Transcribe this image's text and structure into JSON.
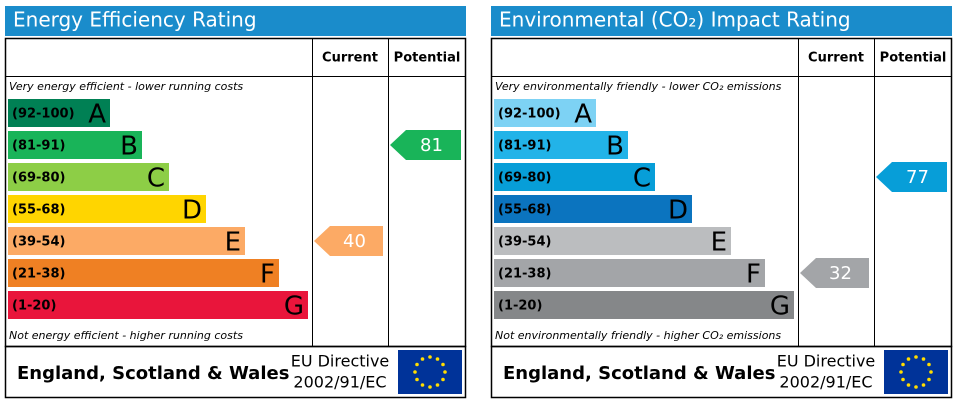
{
  "panels": [
    {
      "title": "Energy Efficiency Rating",
      "columns": [
        "Current",
        "Potential"
      ],
      "top_note": "Very energy efficient - lower running costs",
      "bottom_note": "Not energy efficient - higher running costs",
      "bands": [
        {
          "range": "(92-100)",
          "letter": "A",
          "color": "#008054"
        },
        {
          "range": "(81-91)",
          "letter": "B",
          "color": "#19b459"
        },
        {
          "range": "(69-80)",
          "letter": "C",
          "color": "#8dce46"
        },
        {
          "range": "(55-68)",
          "letter": "D",
          "color": "#ffd500"
        },
        {
          "range": "(39-54)",
          "letter": "E",
          "color": "#fcaa65"
        },
        {
          "range": "(21-38)",
          "letter": "F",
          "color": "#ef8023"
        },
        {
          "range": "(1-20)",
          "letter": "G",
          "color": "#e9153b"
        }
      ],
      "current": 40,
      "potential": 81,
      "footer": {
        "region": "England, Scotland & Wales",
        "directive": [
          "EU Directive",
          "2002/91/EC"
        ]
      }
    },
    {
      "title": "Environmental (CO₂) Impact Rating",
      "columns": [
        "Current",
        "Potential"
      ],
      "top_note": "Very environmentally friendly - lower CO₂ emissions",
      "bottom_note": "Not environmentally friendly - higher CO₂ emissions",
      "bands": [
        {
          "range": "(92-100)",
          "letter": "A",
          "color": "#7dd2f4"
        },
        {
          "range": "(81-91)",
          "letter": "B",
          "color": "#22b3e8"
        },
        {
          "range": "(69-80)",
          "letter": "C",
          "color": "#079ed8"
        },
        {
          "range": "(55-68)",
          "letter": "D",
          "color": "#0b74bf"
        },
        {
          "range": "(39-54)",
          "letter": "E",
          "color": "#bbbdbf"
        },
        {
          "range": "(21-38)",
          "letter": "F",
          "color": "#a3a5a8"
        },
        {
          "range": "(1-20)",
          "letter": "G",
          "color": "#858789"
        }
      ],
      "current": 32,
      "potential": 77,
      "footer": {
        "region": "England, Scotland & Wales",
        "directive": [
          "EU Directive",
          "2002/91/EC"
        ]
      }
    }
  ]
}
